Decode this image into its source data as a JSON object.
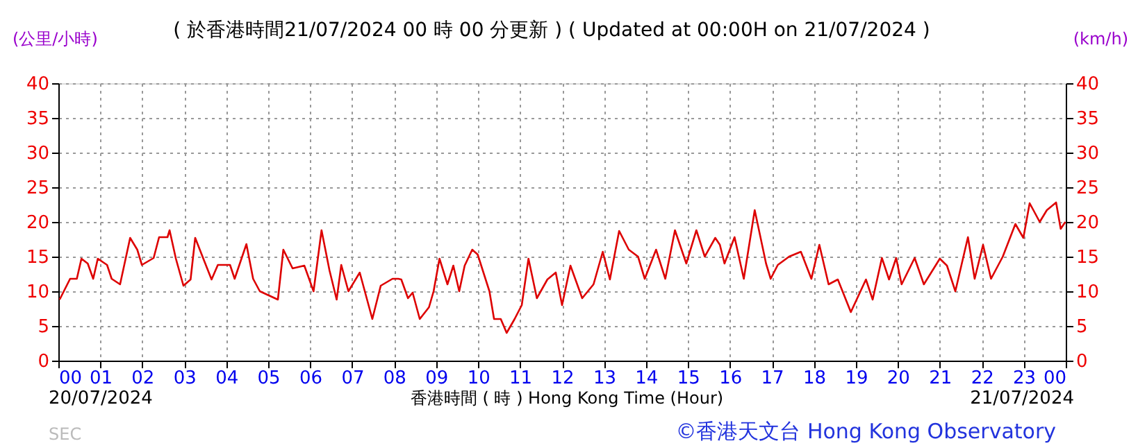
{
  "chart_data": {
    "type": "line",
    "title": "( 於香港時間21/07/2024 00 時 00 分更新 ) ( Updated at 00:00H on 21/07/2024 )",
    "ylabel": "(公里/小時)",
    "y2label": "(km/h)",
    "xlabel": "香港時間 ( 時 ) Hong Kong Time (Hour)",
    "annotations": [
      "20/07/2024",
      "21/07/2024",
      "©香港天文台 Hong Kong Observatory",
      "SEC"
    ],
    "x": [
      0.03,
      0.28,
      0.44,
      0.55,
      0.7,
      0.83,
      0.94,
      1.16,
      1.27,
      1.47,
      1.71,
      1.88,
      1.99,
      2.27,
      2.4,
      2.6,
      2.65,
      2.8,
      2.98,
      3.15,
      3.26,
      3.48,
      3.65,
      3.8,
      4.09,
      4.2,
      4.48,
      4.64,
      4.8,
      5.23,
      5.36,
      5.58,
      5.86,
      6.08,
      6.27,
      6.46,
      6.63,
      6.74,
      6.91,
      7.18,
      7.48,
      7.68,
      7.96,
      8.1,
      8.17,
      8.33,
      8.44,
      8.61,
      8.83,
      8.94,
      9.08,
      9.27,
      9.41,
      9.55,
      9.68,
      9.86,
      9.99,
      10.27,
      10.38,
      10.54,
      10.68,
      10.87,
      11.04,
      11.2,
      11.4,
      11.65,
      11.85,
      12.0,
      12.2,
      12.48,
      12.75,
      12.97,
      13.14,
      13.36,
      13.59,
      13.81,
      13.97,
      14.24,
      14.46,
      14.69,
      14.96,
      15.2,
      15.4,
      15.65,
      15.76,
      15.87,
      16.11,
      16.33,
      16.59,
      16.86,
      16.97,
      17.14,
      17.41,
      17.69,
      17.94,
      18.13,
      18.35,
      18.57,
      18.88,
      19.24,
      19.4,
      19.62,
      19.79,
      19.96,
      20.09,
      20.4,
      20.62,
      21.0,
      21.17,
      21.37,
      21.67,
      21.83,
      22.03,
      22.22,
      22.5,
      22.8,
      22.99,
      23.14,
      23.38,
      23.55,
      23.77,
      23.88,
      23.99
    ],
    "series": [
      {
        "color": "#dd0000",
        "values": [
          8.8,
          11.8,
          11.8,
          14.7,
          14,
          11.8,
          14.7,
          13.8,
          11.8,
          11,
          17.7,
          16,
          13.8,
          14.8,
          17.8,
          17.8,
          18.8,
          14.7,
          10.8,
          11.7,
          17.7,
          14.3,
          11.7,
          13.8,
          13.8,
          11.8,
          16.8,
          11.8,
          10,
          8.8,
          16,
          13.3,
          13.7,
          10,
          18.8,
          13,
          8.8,
          13.8,
          10,
          12.7,
          6,
          10.8,
          11.8,
          11.8,
          11.7,
          9,
          9.8,
          6,
          7.7,
          10,
          14.7,
          11,
          13.7,
          10,
          13.7,
          16,
          15.3,
          10,
          6,
          6,
          4,
          6,
          8,
          14.7,
          9,
          11.7,
          12.7,
          8,
          13.7,
          9,
          11,
          15.7,
          11.7,
          18.7,
          16,
          15,
          11.8,
          16,
          11.8,
          18.8,
          14,
          18.8,
          15,
          17.7,
          16.7,
          14,
          17.8,
          11.8,
          21.7,
          14,
          11.8,
          13.8,
          15,
          15.7,
          11.8,
          16.7,
          11,
          11.7,
          7,
          11.7,
          8.8,
          14.8,
          11.7,
          14.8,
          11,
          14.8,
          11,
          14.7,
          13.7,
          10,
          17.8,
          11.8,
          16.7,
          11.8,
          15,
          19.7,
          17.7,
          22.7,
          20,
          21.7,
          22.8,
          19,
          20
        ]
      }
    ],
    "xlim": [
      0,
      24
    ],
    "xticks": [
      {
        "value": 0,
        "label": "00"
      },
      {
        "value": 1,
        "label": "01"
      },
      {
        "value": 2,
        "label": "02"
      },
      {
        "value": 3,
        "label": "03"
      },
      {
        "value": 4,
        "label": "04"
      },
      {
        "value": 5,
        "label": "05"
      },
      {
        "value": 6,
        "label": "06"
      },
      {
        "value": 7,
        "label": "07"
      },
      {
        "value": 8,
        "label": "08"
      },
      {
        "value": 9,
        "label": "09"
      },
      {
        "value": 10,
        "label": "10"
      },
      {
        "value": 11,
        "label": "11"
      },
      {
        "value": 12,
        "label": "12"
      },
      {
        "value": 13,
        "label": "13"
      },
      {
        "value": 14,
        "label": "14"
      },
      {
        "value": 15,
        "label": "15"
      },
      {
        "value": 16,
        "label": "16"
      },
      {
        "value": 17,
        "label": "17"
      },
      {
        "value": 18,
        "label": "18"
      },
      {
        "value": 19,
        "label": "19"
      },
      {
        "value": 20,
        "label": "20"
      },
      {
        "value": 21,
        "label": "21"
      },
      {
        "value": 22,
        "label": "22"
      },
      {
        "value": 23,
        "label": "23"
      },
      {
        "value": 24,
        "label": "00"
      }
    ],
    "ylim": [
      0,
      40
    ],
    "yticks": [
      0,
      5,
      10,
      15,
      20,
      25,
      30,
      35,
      40
    ],
    "y2lim": [
      0,
      40
    ],
    "y2ticks": [
      0,
      5,
      10,
      15,
      20,
      25,
      30,
      35,
      40
    ],
    "grid": true,
    "marker": "none",
    "line_style": "solid"
  }
}
